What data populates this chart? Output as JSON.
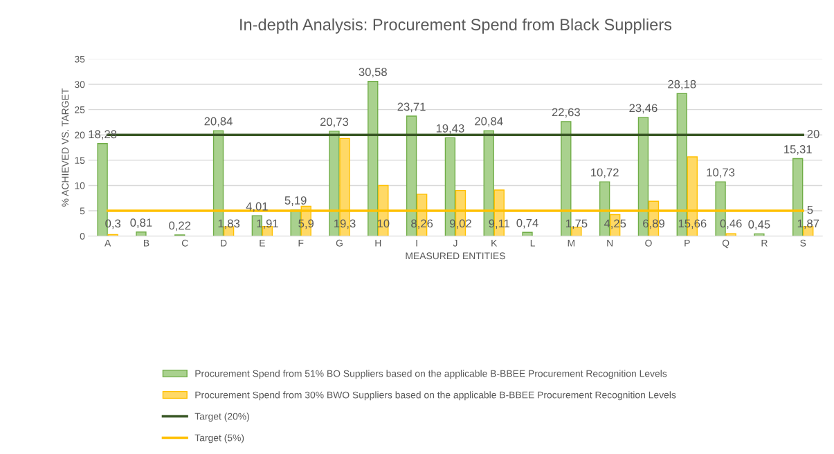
{
  "chart_data": {
    "type": "bar",
    "title": "In-depth Analysis: Procurement Spend from Black Suppliers",
    "xlabel": "MEASURED ENTITIES",
    "ylabel": "% ACHIEVED VS. TARGET",
    "categories": [
      "A",
      "B",
      "C",
      "D",
      "E",
      "F",
      "G",
      "H",
      "I",
      "J",
      "K",
      "L",
      "M",
      "N",
      "O",
      "P",
      "Q",
      "R",
      "S"
    ],
    "series": [
      {
        "name": "Procurement Spend from 51% BO Suppliers based on the applicable B-BBEE Procurement Recognition Levels",
        "color": "#a9d18e",
        "values": [
          18.28,
          0.81,
          0.22,
          20.84,
          4.01,
          5.19,
          20.73,
          30.58,
          23.71,
          19.43,
          20.84,
          0.74,
          22.63,
          10.72,
          23.46,
          28.18,
          10.73,
          0.45,
          15.31
        ],
        "value_labels": [
          "18,28",
          "0,81",
          "0,22",
          "20,84",
          "4,01",
          "5,19",
          "20,73",
          "30,58",
          "23,71",
          "19,43",
          "20,84",
          "0,74",
          "22,63",
          "10,72",
          "23,46",
          "28,18",
          "10,73",
          "0,45",
          "15,31"
        ]
      },
      {
        "name": "Procurement Spend from 30% BWO Suppliers based on the applicable B-BBEE Procurement Recognition Levels",
        "color": "#ffd966",
        "values": [
          0.3,
          null,
          null,
          1.83,
          1.91,
          5.9,
          19.3,
          10,
          8.26,
          9.02,
          9.11,
          null,
          1.75,
          4.25,
          6.89,
          15.66,
          0.46,
          null,
          1.87
        ],
        "value_labels": [
          "0,3",
          null,
          null,
          "1,83",
          "1,91",
          "5,9",
          "19,3",
          "10",
          "8,26",
          "9,02",
          "9,11",
          null,
          "1,75",
          "4,25",
          "6,89",
          "15,66",
          "0,46",
          null,
          "1,87"
        ]
      },
      {
        "name": "Target (20%)",
        "type": "line",
        "color": "#375623",
        "values": [
          20,
          20,
          20,
          20,
          20,
          20,
          20,
          20,
          20,
          20,
          20,
          20,
          20,
          20,
          20,
          20,
          20,
          20,
          20
        ],
        "value_labels": [
          null,
          null,
          null,
          null,
          null,
          null,
          null,
          null,
          null,
          null,
          null,
          null,
          null,
          null,
          null,
          null,
          null,
          null,
          "20"
        ]
      },
      {
        "name": "Target (5%)",
        "type": "line",
        "color": "#ffc000",
        "values": [
          5,
          5,
          5,
          5,
          5,
          5,
          5,
          5,
          5,
          5,
          5,
          5,
          5,
          5,
          5,
          5,
          5,
          5,
          5
        ],
        "value_labels": [
          null,
          null,
          null,
          null,
          null,
          null,
          null,
          null,
          null,
          null,
          null,
          null,
          null,
          null,
          null,
          null,
          null,
          null,
          "5"
        ]
      }
    ],
    "ylim": [
      0,
      35
    ],
    "yticks": [
      0,
      5,
      10,
      15,
      20,
      25,
      30,
      35
    ],
    "grid": "y",
    "legend": "bottom",
    "marker": "none",
    "line_style": "solid"
  }
}
